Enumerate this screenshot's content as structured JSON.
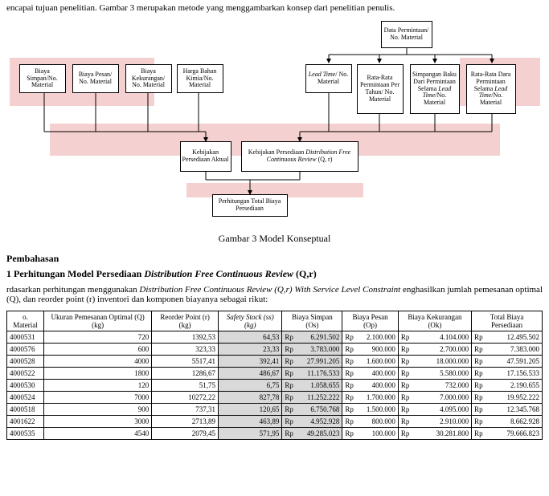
{
  "intro": "encapai tujuan penelitian. Gambar 3 merupakan metode yang menggambarkan konsep dari penelitian penulis.",
  "figCaption": "Gambar 3 Model Konseptual",
  "section": "Pembahasan",
  "subsection_prefix": "1 Perhitungan Model Persediaan ",
  "subsection_italic": "Distribution Free Continuous Review",
  "subsection_suffix": " (Q,r)",
  "body_prefix": "rdasarkan perhitungan menggunakan ",
  "body_italic": "Distribution Free Continuous Review (Q,r) With Service Level Constraint",
  "body_suffix": " enghasilkan jumlah pemesanan optimal (Q), dan reorder point (r) inventori dan komponen biayanya sebagai rikut:",
  "diagram": {
    "boxes": {
      "b1": "Biaya Simpan/No. Material",
      "b2": "Biaya Pesan/ No. Material",
      "b3": "Biaya Kekurangan/ No. Material",
      "b4": "Harga Bahan Kimia/No. Material",
      "b5_pre": "",
      "b5_it": "Lead Time",
      "b5_post": "/ No. Material",
      "b6": "Rata-Rata Permintaan Per Tahun/ No. Material",
      "b7_pre": "Simpangan Baku Dari Permintaan Selama ",
      "b7_it": "Lead Time",
      "b7_post": "/No. Material",
      "b8_pre": "Rata-Rata Dara Permintaan Selama ",
      "b8_it": "Lead Time",
      "b8_post": "/No. Material",
      "b9": "Data Permintaan/ No. Material",
      "b10": "Kebijakan Persediaan Aktual",
      "b11_pre": "Kebijakan Persediaan ",
      "b11_it": "Distribution Free Continuous Review",
      "b11_post": " (Q, r)",
      "b12": "Perhitungan Total Biaya Persediaan"
    }
  },
  "table": {
    "headers": [
      "o. Material",
      "Ukuran Pemesanan Optimal (Q) (kg)",
      "Reorder Point (r) (kg)",
      "Safety Stock (ss) (kg)",
      "Biaya Simpan (Os)",
      "Biaya Pesan (Op)",
      "Biaya Kekurangan (Ok)",
      "Total Biaya Persediaan"
    ],
    "italicHeader": 3,
    "rows": [
      {
        "mat": "4000531",
        "q": "720",
        "r": "1392,53",
        "ss": "64,53",
        "os": "6.291.502",
        "op": "2.100.000",
        "ok": "4.104.000",
        "tb": "12.495.502"
      },
      {
        "mat": "4000576",
        "q": "600",
        "r": "323,33",
        "ss": "23,33",
        "os": "3.783.000",
        "op": "900.000",
        "ok": "2.700.000",
        "tb": "7.383.000"
      },
      {
        "mat": "4000528",
        "q": "4000",
        "r": "5517,41",
        "ss": "392,41",
        "os": "27.991.205",
        "op": "1.600.000",
        "ok": "18.000.000",
        "tb": "47.591.205"
      },
      {
        "mat": "4000522",
        "q": "1800",
        "r": "1286,67",
        "ss": "486,67",
        "os": "11.176.533",
        "op": "400.000",
        "ok": "5.580.000",
        "tb": "17.156.533"
      },
      {
        "mat": "4000530",
        "q": "120",
        "r": "51,75",
        "ss": "6,75",
        "os": "1.058.655",
        "op": "400.000",
        "ok": "732.000",
        "tb": "2.190.655"
      },
      {
        "mat": "4000524",
        "q": "7000",
        "r": "10272,22",
        "ss": "827,78",
        "os": "11.252.222",
        "op": "1.700.000",
        "ok": "7.000.000",
        "tb": "19.952.222"
      },
      {
        "mat": "4000518",
        "q": "900",
        "r": "737,31",
        "ss": "120,65",
        "os": "6.750.768",
        "op": "1.500.000",
        "ok": "4.095.000",
        "tb": "12.345.768"
      },
      {
        "mat": "4001622",
        "q": "3000",
        "r": "2713,89",
        "ss": "463,89",
        "os": "4.952.928",
        "op": "800.000",
        "ok": "2.910.000",
        "tb": "8.662.928"
      },
      {
        "mat": "4000535",
        "q": "4540",
        "r": "2079,45",
        "ss": "571,95",
        "os": "49.285.023",
        "op": "100.000",
        "ok": "30.281.800",
        "tb": "79.666.823"
      }
    ],
    "rpPrefix": "Rp",
    "grayCols": [
      3,
      4
    ],
    "colors": {
      "border": "#000000",
      "grayFill": "#d9d9d9",
      "bg": "#ffffff"
    }
  },
  "styling": {
    "bodyFontSize": 11,
    "tableFontSize": 9,
    "diagramFontSize": 8,
    "redBg": "#f4d0d0",
    "textColor": "#000000"
  }
}
